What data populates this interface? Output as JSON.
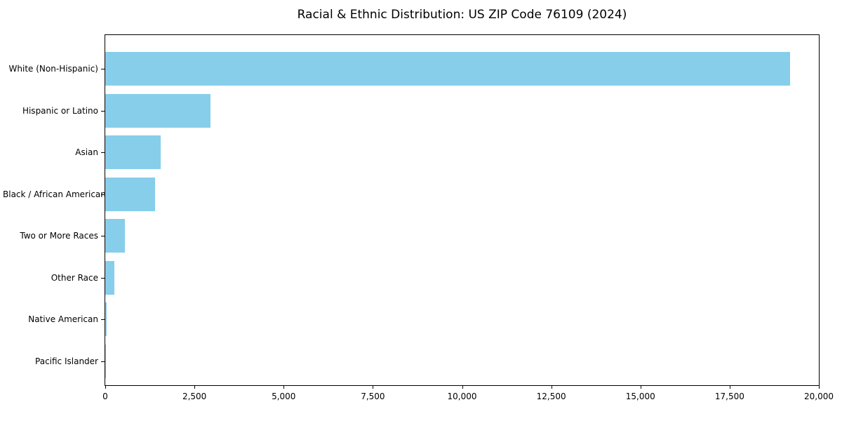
{
  "title": "Racial & Ethnic Distribution: US ZIP Code 76109 (2024)",
  "chart_data": {
    "type": "bar",
    "orientation": "horizontal",
    "title": "Racial & Ethnic Distribution: US ZIP Code 76109 (2024)",
    "xlabel": "",
    "ylabel": "",
    "categories": [
      "White (Non-Hispanic)",
      "Hispanic or Latino",
      "Asian",
      "Black / African American",
      "Two or More Races",
      "Other Race",
      "Native American",
      "Pacific Islander"
    ],
    "values": [
      19200,
      2950,
      1550,
      1400,
      550,
      260,
      40,
      10
    ],
    "xlim": [
      0,
      20000
    ],
    "x_ticks": [
      0,
      2500,
      5000,
      7500,
      10000,
      12500,
      15000,
      17500,
      20000
    ],
    "x_tick_labels": [
      "0",
      "2,500",
      "5,000",
      "7,500",
      "10,000",
      "12,500",
      "15,000",
      "17,500",
      "20,000"
    ],
    "grid": false,
    "legend": "none",
    "bar_color": "#87CEEB",
    "axis_color": "#000000",
    "background_color": "#ffffff"
  }
}
